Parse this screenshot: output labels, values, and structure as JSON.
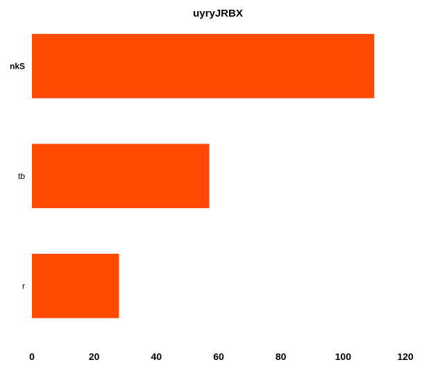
{
  "chart_data": {
    "type": "bar",
    "orientation": "horizontal",
    "title": "uyryJRBX",
    "xlabel": "",
    "ylabel": "",
    "categories": [
      "nkS",
      "tb",
      "r"
    ],
    "bold_categories": [
      "nkS"
    ],
    "values": [
      110,
      57,
      28
    ],
    "xlim": [
      0,
      120
    ],
    "xticks": [
      0,
      20,
      40,
      60,
      80,
      100,
      120
    ],
    "bar_color": "#ff4800",
    "grid": false,
    "legend": "none"
  }
}
